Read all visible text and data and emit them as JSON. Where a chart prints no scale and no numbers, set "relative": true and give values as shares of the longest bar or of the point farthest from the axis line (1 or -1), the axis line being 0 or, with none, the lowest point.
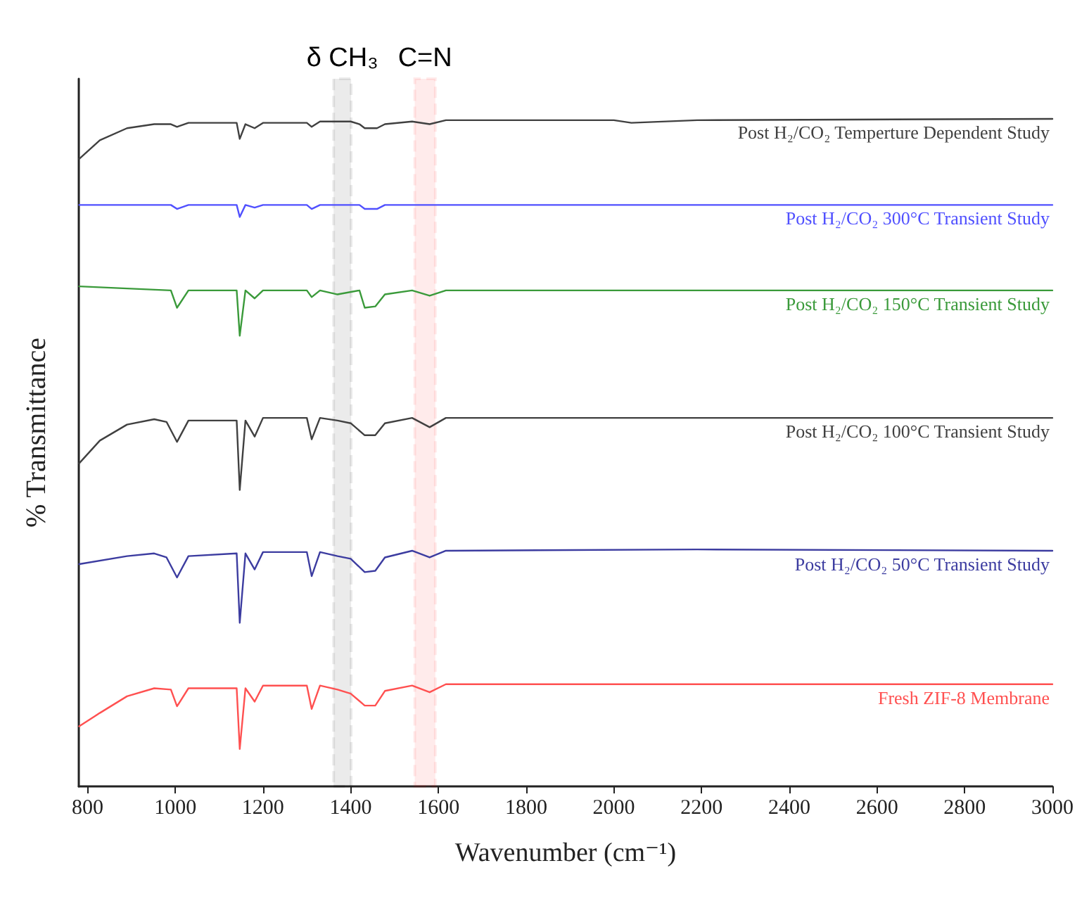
{
  "chart_data": {
    "type": "line",
    "relative": true,
    "xlabel": "Wavenumber (cm⁻¹)",
    "ylabel": "% Transmittance",
    "xlim": [
      780,
      3000
    ],
    "xticks": [
      800,
      1000,
      1200,
      1400,
      1600,
      1800,
      2000,
      2200,
      2400,
      2600,
      2800,
      3000
    ],
    "grid": false,
    "legend": false,
    "marker": "none",
    "line_style": "solid",
    "series": [
      {
        "name": "Post H₂/CO₂ Temperture Dependent Study",
        "color": "#404040",
        "x": [
          781,
          828,
          890,
          952,
          990,
          1004,
          1030,
          1140,
          1147,
          1160,
          1181,
          1200,
          1300,
          1311,
          1330,
          1400,
          1420,
          1432,
          1460,
          1478,
          1540,
          1580,
          1617,
          2000,
          2040,
          2190,
          3000
        ],
        "values": [
          0.94,
          0.968,
          0.986,
          0.992,
          0.992,
          0.988,
          0.994,
          0.994,
          0.97,
          0.992,
          0.986,
          0.994,
          0.994,
          0.988,
          0.996,
          0.996,
          0.992,
          0.986,
          0.986,
          0.992,
          0.996,
          0.992,
          0.998,
          0.998,
          0.994,
          0.998,
          1.0
        ]
      },
      {
        "name": "Post H₂/CO₂ 300°C Transient Study",
        "color": "#5050ff",
        "x": [
          781,
          990,
          1004,
          1030,
          1140,
          1147,
          1160,
          1181,
          1200,
          1300,
          1311,
          1330,
          1420,
          1432,
          1460,
          1478,
          3000
        ],
        "values": [
          0.871,
          0.871,
          0.865,
          0.871,
          0.871,
          0.853,
          0.871,
          0.867,
          0.871,
          0.871,
          0.865,
          0.871,
          0.871,
          0.865,
          0.865,
          0.871,
          0.871
        ]
      },
      {
        "name": "Post H₂/CO₂ 150°C Transient Study",
        "color": "#3a9a3a",
        "x": [
          781,
          990,
          1004,
          1030,
          1140,
          1147,
          1160,
          1181,
          1200,
          1300,
          1311,
          1330,
          1370,
          1420,
          1432,
          1456,
          1478,
          1540,
          1580,
          1617,
          3000
        ],
        "values": [
          0.749,
          0.743,
          0.717,
          0.743,
          0.743,
          0.675,
          0.743,
          0.731,
          0.743,
          0.743,
          0.733,
          0.743,
          0.737,
          0.743,
          0.717,
          0.719,
          0.737,
          0.743,
          0.735,
          0.743,
          0.743
        ]
      },
      {
        "name": "Post H₂/CO₂ 100°C Transient Study",
        "color": "#404040",
        "x": [
          781,
          828,
          890,
          952,
          980,
          1004,
          1030,
          1140,
          1147,
          1160,
          1181,
          1200,
          1300,
          1311,
          1330,
          1370,
          1400,
          1432,
          1456,
          1478,
          1540,
          1580,
          1617,
          3000
        ],
        "values": [
          0.484,
          0.518,
          0.542,
          0.55,
          0.546,
          0.516,
          0.548,
          0.548,
          0.444,
          0.548,
          0.524,
          0.552,
          0.552,
          0.52,
          0.552,
          0.548,
          0.544,
          0.526,
          0.526,
          0.544,
          0.552,
          0.538,
          0.552,
          0.552
        ]
      },
      {
        "name": "Post H₂/CO₂ 50°C Transient Study",
        "color": "#3c3ca0",
        "x": [
          781,
          890,
          952,
          980,
          1004,
          1030,
          1140,
          1147,
          1160,
          1181,
          1200,
          1300,
          1311,
          1330,
          1370,
          1400,
          1432,
          1456,
          1478,
          1540,
          1580,
          1617,
          2190,
          3000
        ],
        "values": [
          0.333,
          0.345,
          0.349,
          0.343,
          0.313,
          0.345,
          0.349,
          0.245,
          0.349,
          0.325,
          0.351,
          0.351,
          0.315,
          0.351,
          0.345,
          0.341,
          0.321,
          0.323,
          0.343,
          0.353,
          0.343,
          0.353,
          0.355,
          0.353
        ]
      },
      {
        "name": "Fresh ZIF-8 Membrane",
        "color": "#ff5050",
        "x": [
          781,
          828,
          890,
          952,
          990,
          1004,
          1030,
          1140,
          1147,
          1160,
          1181,
          1200,
          1300,
          1311,
          1330,
          1370,
          1400,
          1432,
          1456,
          1478,
          1540,
          1580,
          1617,
          3000
        ],
        "values": [
          0.09,
          0.11,
          0.135,
          0.147,
          0.145,
          0.12,
          0.147,
          0.147,
          0.056,
          0.147,
          0.127,
          0.151,
          0.151,
          0.116,
          0.151,
          0.145,
          0.139,
          0.121,
          0.121,
          0.143,
          0.151,
          0.141,
          0.153,
          0.153
        ]
      }
    ],
    "bands": [
      {
        "axis": "x",
        "from": 1361,
        "to": 1401,
        "label": "δ CH₃",
        "color": "#000000"
      },
      {
        "axis": "x",
        "from": 1546,
        "to": 1593,
        "label": "C=N",
        "color": "#ff0000"
      }
    ]
  }
}
